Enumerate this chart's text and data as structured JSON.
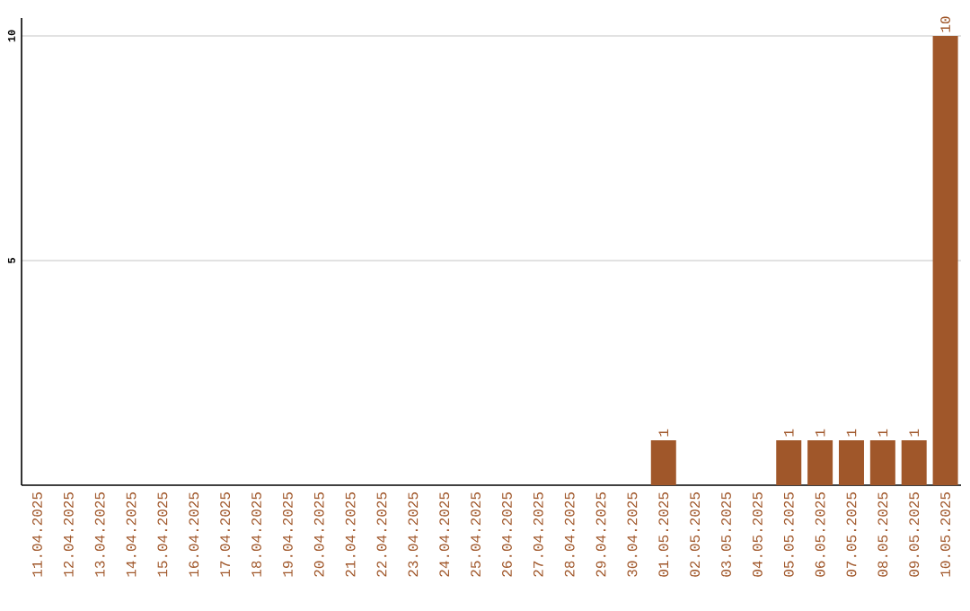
{
  "chart_data": {
    "type": "bar",
    "categories": [
      "11.04.2025",
      "12.04.2025",
      "13.04.2025",
      "14.04.2025",
      "15.04.2025",
      "16.04.2025",
      "17.04.2025",
      "18.04.2025",
      "19.04.2025",
      "20.04.2025",
      "21.04.2025",
      "22.04.2025",
      "23.04.2025",
      "24.04.2025",
      "25.04.2025",
      "26.04.2025",
      "27.04.2025",
      "28.04.2025",
      "29.04.2025",
      "30.04.2025",
      "01.05.2025",
      "02.05.2025",
      "03.05.2025",
      "04.05.2025",
      "05.05.2025",
      "06.05.2025",
      "07.05.2025",
      "08.05.2025",
      "09.05.2025",
      "10.05.2025"
    ],
    "values": [
      0,
      0,
      0,
      0,
      0,
      0,
      0,
      0,
      0,
      0,
      0,
      0,
      0,
      0,
      0,
      0,
      0,
      0,
      0,
      0,
      1,
      0,
      0,
      0,
      1,
      1,
      1,
      1,
      1,
      10
    ],
    "value_labels": [
      null,
      null,
      null,
      null,
      null,
      null,
      null,
      null,
      null,
      null,
      null,
      null,
      null,
      null,
      null,
      null,
      null,
      null,
      null,
      null,
      "1",
      null,
      null,
      null,
      "1",
      "1",
      "1",
      "1",
      "1",
      "10"
    ],
    "color": "#a0572a",
    "ylim": [
      0,
      10.4
    ],
    "yticks": [
      5,
      10
    ],
    "grid": "y"
  }
}
